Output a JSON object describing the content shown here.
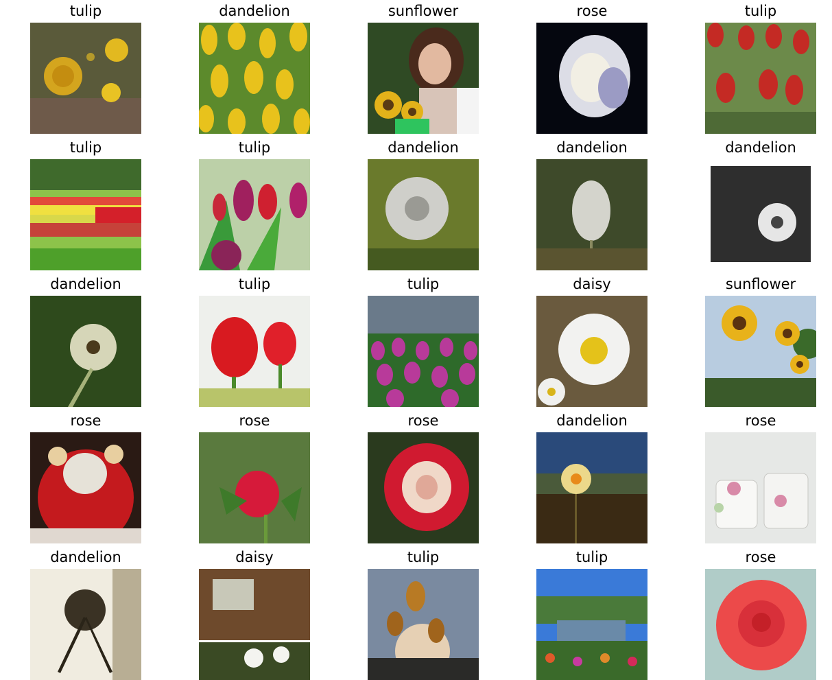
{
  "grid": {
    "cells": [
      {
        "label": "tulip"
      },
      {
        "label": "dandelion"
      },
      {
        "label": "sunflower"
      },
      {
        "label": "rose"
      },
      {
        "label": "tulip"
      },
      {
        "label": "tulip"
      },
      {
        "label": "tulip"
      },
      {
        "label": "dandelion"
      },
      {
        "label": "dandelion"
      },
      {
        "label": "dandelion"
      },
      {
        "label": "dandelion"
      },
      {
        "label": "tulip"
      },
      {
        "label": "tulip"
      },
      {
        "label": "daisy"
      },
      {
        "label": "sunflower"
      },
      {
        "label": "rose"
      },
      {
        "label": "rose"
      },
      {
        "label": "rose"
      },
      {
        "label": "dandelion"
      },
      {
        "label": "rose"
      },
      {
        "label": "dandelion"
      },
      {
        "label": "daisy"
      },
      {
        "label": "tulip"
      },
      {
        "label": "tulip"
      },
      {
        "label": "rose"
      }
    ]
  }
}
